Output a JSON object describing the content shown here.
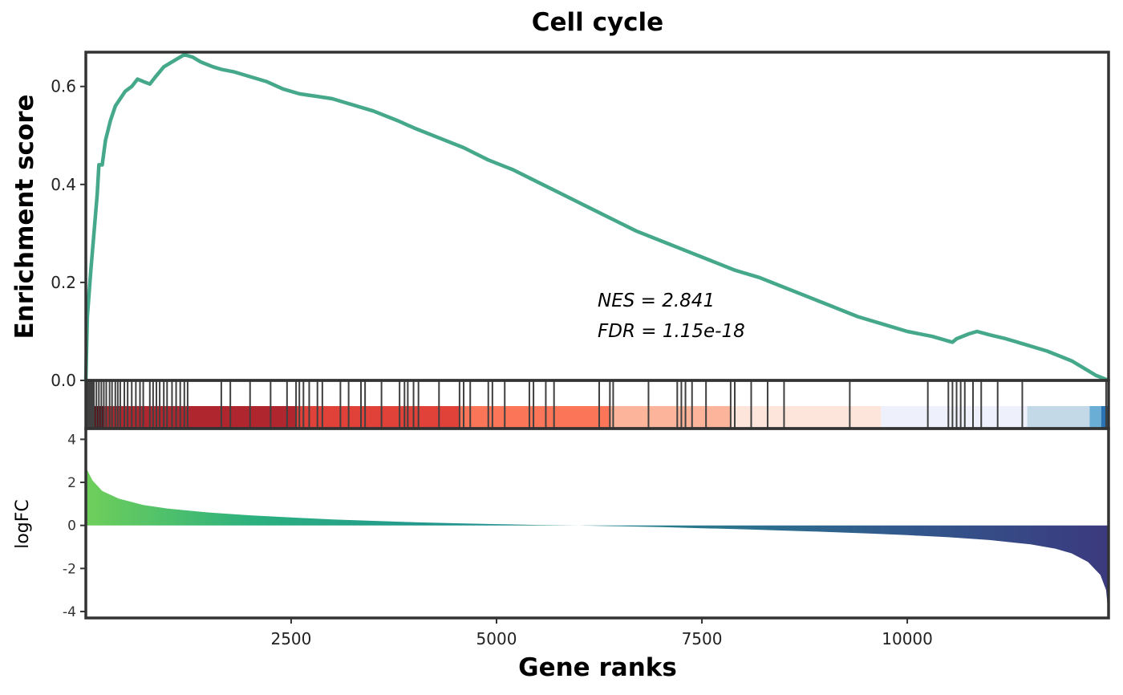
{
  "chart_data": {
    "type": "line",
    "title": "Cell cycle",
    "xlabel": "Gene ranks",
    "xlim": [
      1,
      12450
    ],
    "x_ticks": [
      2500,
      5000,
      7500,
      10000
    ],
    "enrichment": {
      "ylabel": "Enrichment score",
      "ylim": [
        0,
        0.67
      ],
      "y_ticks": [
        0.0,
        0.2,
        0.4,
        0.6
      ],
      "y_tick_labels": [
        "0.0",
        "0.2",
        "0.4",
        "0.6"
      ],
      "line_color": "#45a88a",
      "curve": [
        [
          1,
          0.0
        ],
        [
          20,
          0.13
        ],
        [
          60,
          0.22
        ],
        [
          100,
          0.3
        ],
        [
          140,
          0.38
        ],
        [
          160,
          0.44
        ],
        [
          200,
          0.44
        ],
        [
          240,
          0.49
        ],
        [
          300,
          0.53
        ],
        [
          360,
          0.56
        ],
        [
          420,
          0.575
        ],
        [
          480,
          0.59
        ],
        [
          560,
          0.6
        ],
        [
          630,
          0.615
        ],
        [
          700,
          0.61
        ],
        [
          780,
          0.605
        ],
        [
          850,
          0.62
        ],
        [
          950,
          0.64
        ],
        [
          1050,
          0.65
        ],
        [
          1150,
          0.66
        ],
        [
          1200,
          0.665
        ],
        [
          1300,
          0.66
        ],
        [
          1400,
          0.65
        ],
        [
          1550,
          0.64
        ],
        [
          1650,
          0.635
        ],
        [
          1800,
          0.63
        ],
        [
          2000,
          0.62
        ],
        [
          2200,
          0.61
        ],
        [
          2400,
          0.595
        ],
        [
          2600,
          0.585
        ],
        [
          2800,
          0.58
        ],
        [
          3000,
          0.575
        ],
        [
          3200,
          0.565
        ],
        [
          3500,
          0.55
        ],
        [
          3800,
          0.53
        ],
        [
          4000,
          0.515
        ],
        [
          4300,
          0.495
        ],
        [
          4600,
          0.475
        ],
        [
          4900,
          0.45
        ],
        [
          5200,
          0.43
        ],
        [
          5500,
          0.405
        ],
        [
          5800,
          0.38
        ],
        [
          6100,
          0.355
        ],
        [
          6400,
          0.33
        ],
        [
          6700,
          0.305
        ],
        [
          7000,
          0.285
        ],
        [
          7300,
          0.265
        ],
        [
          7600,
          0.245
        ],
        [
          7900,
          0.225
        ],
        [
          8200,
          0.21
        ],
        [
          8500,
          0.19
        ],
        [
          8800,
          0.17
        ],
        [
          9100,
          0.15
        ],
        [
          9400,
          0.13
        ],
        [
          9700,
          0.115
        ],
        [
          10000,
          0.1
        ],
        [
          10300,
          0.09
        ],
        [
          10550,
          0.078
        ],
        [
          10600,
          0.085
        ],
        [
          10750,
          0.095
        ],
        [
          10850,
          0.1
        ],
        [
          11000,
          0.093
        ],
        [
          11200,
          0.085
        ],
        [
          11400,
          0.075
        ],
        [
          11700,
          0.06
        ],
        [
          12000,
          0.04
        ],
        [
          12300,
          0.01
        ],
        [
          12450,
          0.0
        ]
      ],
      "hits": [
        10,
        25,
        40,
        55,
        70,
        85,
        100,
        130,
        160,
        190,
        220,
        250,
        290,
        320,
        360,
        390,
        420,
        470,
        510,
        560,
        610,
        660,
        700,
        780,
        820,
        860,
        900,
        950,
        990,
        1050,
        1100,
        1150,
        1200,
        1240,
        1650,
        1760,
        2000,
        2250,
        2450,
        2560,
        2600,
        2650,
        2720,
        2820,
        2880,
        3100,
        3200,
        3350,
        3400,
        3600,
        3820,
        3880,
        3920,
        3990,
        4050,
        4300,
        4550,
        4600,
        4680,
        4900,
        4950,
        5100,
        5400,
        5450,
        5600,
        5700,
        6250,
        6380,
        6420,
        6850,
        7200,
        7250,
        7300,
        7380,
        7550,
        7850,
        7900,
        8100,
        8300,
        8500,
        9300,
        10250,
        10500,
        10550,
        10600,
        10650,
        10700,
        10800,
        10900,
        11100,
        11400,
        12420
      ],
      "color_bins": [
        {
          "from": 1,
          "to": 220,
          "color": "#67000d"
        },
        {
          "from": 220,
          "to": 2560,
          "color": "#b0262e"
        },
        {
          "from": 2560,
          "to": 4560,
          "color": "#e0423a"
        },
        {
          "from": 4560,
          "to": 6380,
          "color": "#fb7658"
        },
        {
          "from": 6380,
          "to": 7850,
          "color": "#fcb49a"
        },
        {
          "from": 7850,
          "to": 9680,
          "color": "#fde5dc"
        },
        {
          "from": 9680,
          "to": 11460,
          "color": "#eef1fb"
        },
        {
          "from": 11460,
          "to": 12220,
          "color": "#c3d9e8"
        },
        {
          "from": 12220,
          "to": 12360,
          "color": "#6aaed6"
        },
        {
          "from": 12360,
          "to": 12450,
          "color": "#2a74b5"
        }
      ],
      "annotations": [
        "NES = 2.841",
        "FDR = 1.15e-18"
      ]
    },
    "logfc": {
      "ylabel": "logFC",
      "ylim": [
        -4.3,
        4.5
      ],
      "y_ticks": [
        -4,
        -2,
        0,
        2,
        4
      ],
      "y_tick_labels": [
        "-4",
        "-2",
        "0",
        "2",
        "4"
      ],
      "profile": [
        [
          1,
          2.7
        ],
        [
          80,
          2.1
        ],
        [
          200,
          1.6
        ],
        [
          400,
          1.25
        ],
        [
          700,
          0.95
        ],
        [
          1000,
          0.78
        ],
        [
          1500,
          0.6
        ],
        [
          2000,
          0.47
        ],
        [
          2500,
          0.37
        ],
        [
          3000,
          0.28
        ],
        [
          3500,
          0.21
        ],
        [
          4000,
          0.15
        ],
        [
          4500,
          0.1
        ],
        [
          5000,
          0.06
        ],
        [
          5500,
          0.02
        ],
        [
          6000,
          0.0
        ],
        [
          6500,
          -0.04
        ],
        [
          7000,
          -0.08
        ],
        [
          7500,
          -0.13
        ],
        [
          8000,
          -0.18
        ],
        [
          8500,
          -0.24
        ],
        [
          9000,
          -0.3
        ],
        [
          9500,
          -0.37
        ],
        [
          10000,
          -0.45
        ],
        [
          10500,
          -0.55
        ],
        [
          11000,
          -0.68
        ],
        [
          11500,
          -0.88
        ],
        [
          11800,
          -1.08
        ],
        [
          12000,
          -1.3
        ],
        [
          12200,
          -1.7
        ],
        [
          12350,
          -2.3
        ],
        [
          12420,
          -3.0
        ],
        [
          12450,
          -4.2
        ]
      ],
      "gradient_colors": [
        "#6fcf5a",
        "#2bb07f",
        "#22988d",
        "#24868e",
        "#2c6d8e",
        "#33538b",
        "#3b3a7e"
      ]
    }
  }
}
